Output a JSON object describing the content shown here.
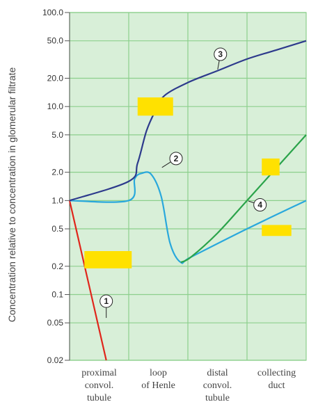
{
  "chart_data": {
    "type": "line",
    "ylabel": "Concentration relative to concentration in glomerular filtrate",
    "y_scale": "log",
    "yticks": [
      {
        "value": 100,
        "label": "100.0"
      },
      {
        "value": 50,
        "label": "50.0"
      },
      {
        "value": 20,
        "label": "20.0"
      },
      {
        "value": 10,
        "label": "10.0"
      },
      {
        "value": 5,
        "label": "5.0"
      },
      {
        "value": 2,
        "label": "2.0"
      },
      {
        "value": 1,
        "label": "1.0"
      },
      {
        "value": 0.5,
        "label": "0.5"
      },
      {
        "value": 0.2,
        "label": "0.2"
      },
      {
        "value": 0.1,
        "label": "0.1"
      },
      {
        "value": 0.05,
        "label": "0.05"
      },
      {
        "value": 0.02,
        "label": "0.02"
      }
    ],
    "ylim": [
      0.02,
      100
    ],
    "xlim": [
      0,
      4
    ],
    "categories": [
      {
        "start": 0,
        "end": 1,
        "lines": [
          "proximal",
          "convol.",
          "tubule"
        ]
      },
      {
        "start": 1,
        "end": 2,
        "lines": [
          "loop",
          "of Henle"
        ]
      },
      {
        "start": 2,
        "end": 3,
        "lines": [
          "distal",
          "convol.",
          "tubule"
        ]
      },
      {
        "start": 3,
        "end": 4,
        "lines": [
          "collecting",
          "duct"
        ]
      }
    ],
    "grid": true,
    "background_color": "#d8efd8",
    "grid_color": "#8ccf8c",
    "series": [
      {
        "marker": "1",
        "color": "#e0251b",
        "points": [
          [
            0,
            1
          ],
          [
            0.62,
            0.02
          ]
        ],
        "marker_at": [
          0.62,
          0.085
        ]
      },
      {
        "marker": "2",
        "color": "#29a8dc",
        "points": [
          [
            0,
            1
          ],
          [
            1,
            1
          ],
          [
            1.1,
            1.7
          ],
          [
            1.22,
            1.95
          ],
          [
            1.38,
            1.9
          ],
          [
            1.55,
            1.1
          ],
          [
            1.7,
            0.35
          ],
          [
            1.88,
            0.22
          ],
          [
            2.05,
            0.25
          ],
          [
            3,
            0.5
          ],
          [
            4,
            1.0
          ]
        ],
        "marker_at": [
          1.8,
          2.8
        ]
      },
      {
        "marker": "3",
        "color": "#2d3a8c",
        "points": [
          [
            0,
            1
          ],
          [
            1,
            1.6
          ],
          [
            1.15,
            2.5
          ],
          [
            1.3,
            5.5
          ],
          [
            1.45,
            9
          ],
          [
            1.6,
            13
          ],
          [
            2,
            18
          ],
          [
            2.5,
            24
          ],
          [
            3,
            32
          ],
          [
            3.5,
            40
          ],
          [
            4,
            50
          ]
        ],
        "marker_at": [
          2.55,
          36
        ]
      },
      {
        "marker": "4",
        "color": "#2aa34a",
        "points": [
          [
            1.88,
            0.22
          ],
          [
            2.05,
            0.25
          ],
          [
            2.5,
            0.45
          ],
          [
            3,
            1.0
          ],
          [
            4,
            5.0
          ]
        ],
        "marker_at": [
          3.22,
          0.9
        ]
      }
    ],
    "redactions": [
      {
        "x": [
          1.15,
          1.75
        ],
        "y": [
          12.5,
          8.0
        ]
      },
      {
        "x": [
          3.25,
          3.55
        ],
        "y": [
          2.8,
          1.85
        ]
      },
      {
        "x": [
          3.25,
          3.75
        ],
        "y": [
          0.55,
          0.42
        ]
      },
      {
        "x": [
          0.25,
          1.05
        ],
        "y": [
          0.29,
          0.19
        ]
      }
    ],
    "redaction_color": "#ffe100"
  }
}
